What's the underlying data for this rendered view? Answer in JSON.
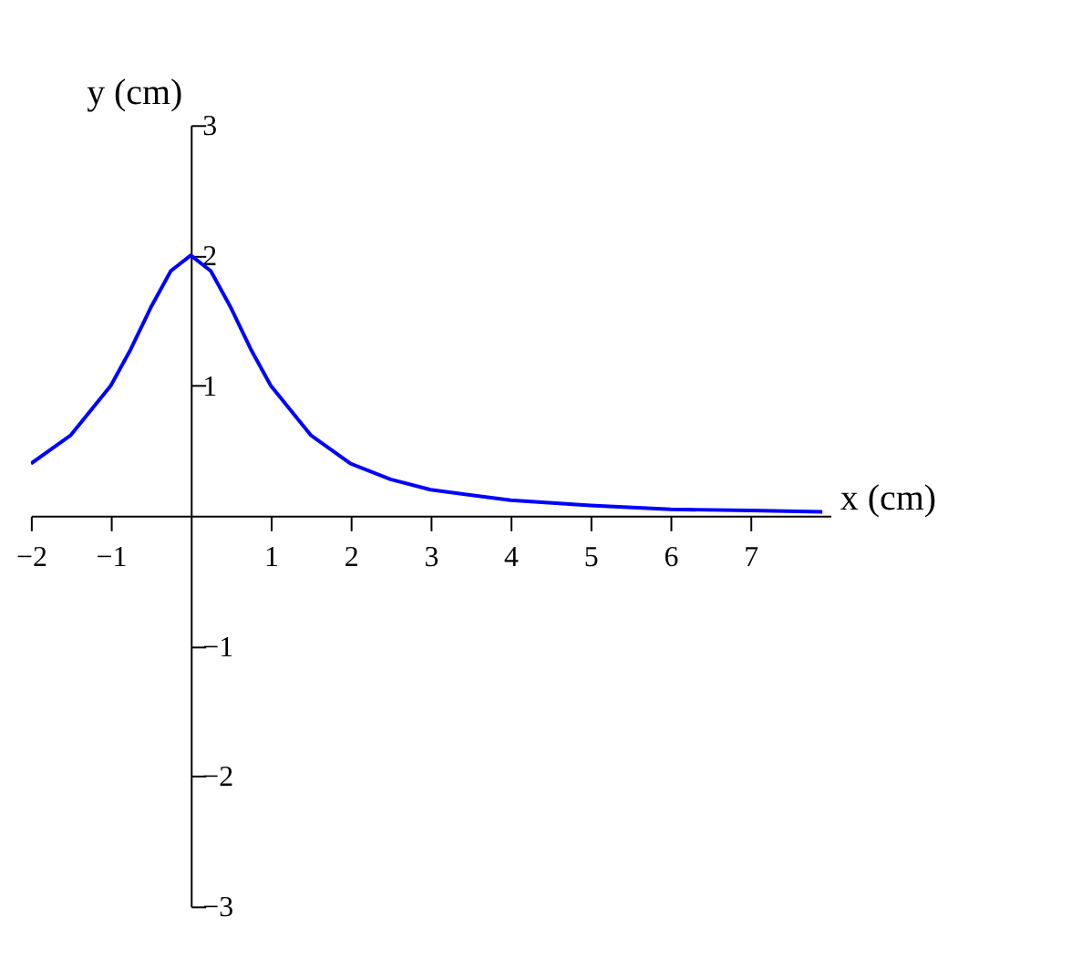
{
  "chart_data": {
    "type": "line",
    "xlabel": "x (cm)",
    "ylabel": "y (cm)",
    "x": [
      -2,
      -1.5,
      -1,
      -0.75,
      -0.5,
      -0.25,
      0,
      0.25,
      0.5,
      0.75,
      1,
      1.5,
      2,
      2.5,
      3,
      4,
      5,
      6,
      7,
      7.9
    ],
    "series": [
      {
        "color": "#0000ff",
        "values": [
          0.4,
          0.62,
          1.0,
          1.28,
          1.6,
          1.88,
          2.0,
          1.88,
          1.6,
          1.28,
          1.0,
          0.62,
          0.4,
          0.28,
          0.2,
          0.12,
          0.08,
          0.05,
          0.04,
          0.03
        ]
      }
    ],
    "xlim": [
      -2,
      8
    ],
    "ylim": [
      -3,
      3
    ],
    "xticks": [
      -2,
      -1,
      1,
      2,
      3,
      4,
      5,
      6,
      7
    ],
    "yticks": [
      -3,
      -2,
      -1,
      1,
      2,
      3
    ],
    "grid": false,
    "marker": "none",
    "line_style": "solid"
  }
}
